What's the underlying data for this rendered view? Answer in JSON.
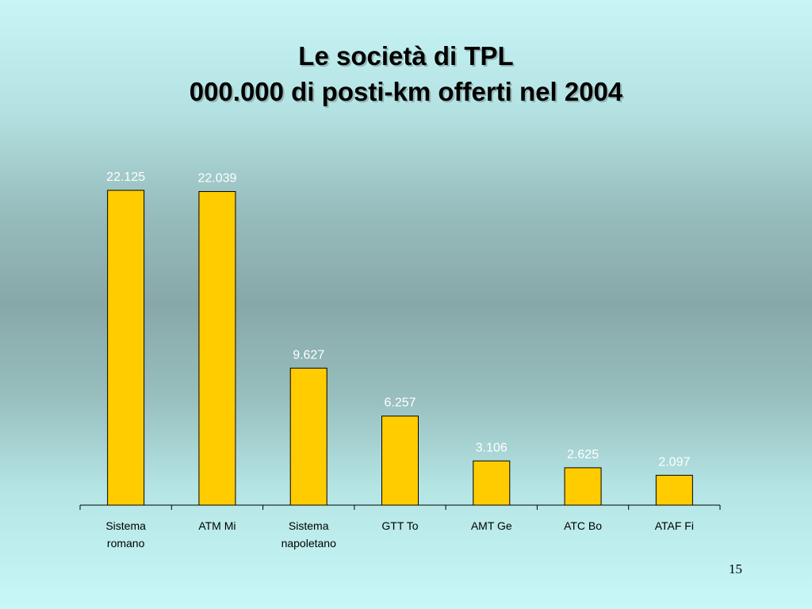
{
  "slide": {
    "page_number": "15"
  },
  "chart_data": {
    "type": "bar",
    "title": "Le società di TPL",
    "subtitle": "000.000 di posti-km offerti nel 2004",
    "categories": [
      [
        "Sistema",
        "romano"
      ],
      [
        "ATM Mi"
      ],
      [
        "Sistema",
        "napoletano"
      ],
      [
        "GTT To"
      ],
      [
        "AMT Ge"
      ],
      [
        "ATC Bo"
      ],
      [
        "ATAF Fi"
      ]
    ],
    "values": [
      22125,
      22039,
      9627,
      6257,
      3106,
      2625,
      2097
    ],
    "value_labels": [
      "22.125",
      "22.039",
      "9.627",
      "6.257",
      "3.106",
      "2.625",
      "2.097"
    ],
    "bar_color": "#ffcc00",
    "bar_stroke": "#000000",
    "value_label_color": "#ffffff",
    "ylim": [
      0,
      22125
    ],
    "grid": false,
    "legend": "none"
  }
}
